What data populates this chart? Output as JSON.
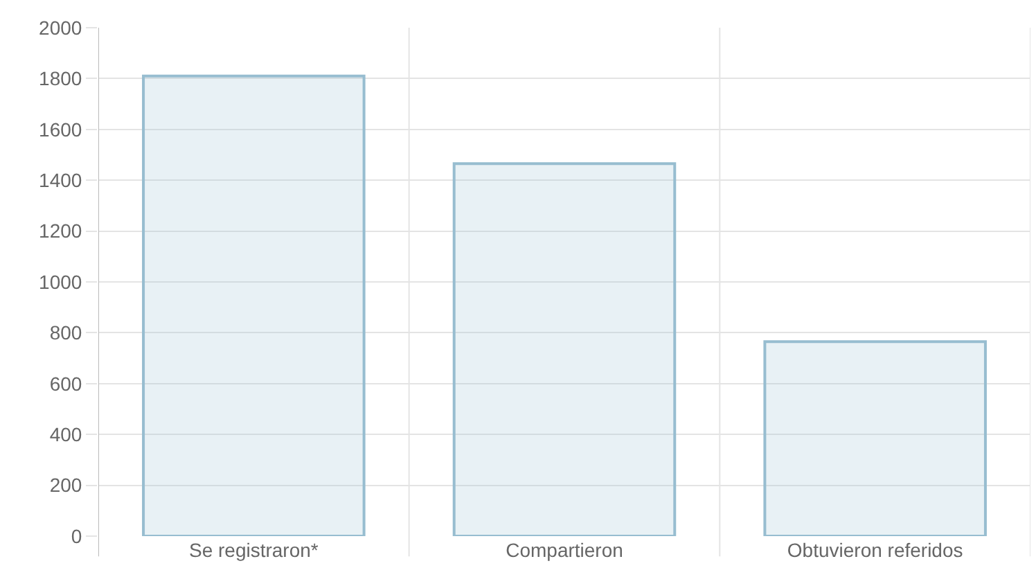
{
  "chart_data": {
    "type": "bar",
    "categories": [
      "Se registraron*",
      "Compartieron",
      "Obtuvieron referidos"
    ],
    "series": [
      {
        "color": "#97bdd0",
        "values": [
          1810,
          1465,
          765
        ]
      }
    ],
    "ylim": [
      0,
      2000
    ],
    "yticks": [
      0,
      200,
      400,
      600,
      800,
      1000,
      1200,
      1400,
      1600,
      1800,
      2000
    ],
    "grid": true
  }
}
